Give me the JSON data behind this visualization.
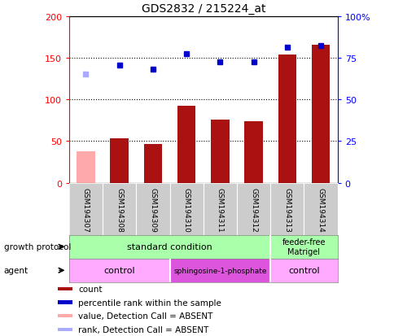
{
  "title": "GDS2832 / 215224_at",
  "samples": [
    "GSM194307",
    "GSM194308",
    "GSM194309",
    "GSM194310",
    "GSM194311",
    "GSM194312",
    "GSM194313",
    "GSM194314"
  ],
  "bar_values": [
    38,
    53,
    46,
    92,
    76,
    74,
    154,
    166
  ],
  "bar_absent": [
    true,
    false,
    false,
    false,
    false,
    false,
    false,
    false
  ],
  "rank_values": [
    65,
    70.5,
    68,
    77.5,
    72.5,
    72.5,
    81.5,
    82.5
  ],
  "rank_absent": [
    true,
    false,
    false,
    false,
    false,
    false,
    false,
    false
  ],
  "bar_color_present": "#aa1111",
  "bar_color_absent": "#ffaaaa",
  "rank_color_present": "#0000cc",
  "rank_color_absent": "#aaaaff",
  "ylim_left": [
    0,
    200
  ],
  "ylim_right": [
    0,
    100
  ],
  "yticks_left": [
    0,
    50,
    100,
    150,
    200
  ],
  "ytick_labels_left": [
    "0",
    "50",
    "100",
    "150",
    "200"
  ],
  "yticks_right": [
    0,
    25,
    50,
    75,
    100
  ],
  "ytick_labels_right": [
    "0",
    "25",
    "50",
    "75",
    "100%"
  ],
  "growth_protocol_labels": [
    "standard condition",
    "feeder-free\nMatrigel"
  ],
  "growth_protocol_colors": [
    "#aaffaa",
    "#aaffaa"
  ],
  "agent_labels": [
    "control",
    "sphingosine-1-phosphate",
    "control"
  ],
  "agent_colors_light": "#ffaaff",
  "agent_color_dark": "#dd66dd",
  "legend_items": [
    {
      "label": "count",
      "color": "#aa1111"
    },
    {
      "label": "percentile rank within the sample",
      "color": "#0000cc"
    },
    {
      "label": "value, Detection Call = ABSENT",
      "color": "#ffaaaa"
    },
    {
      "label": "rank, Detection Call = ABSENT",
      "color": "#aaaaff"
    }
  ],
  "background_color": "#ffffff",
  "x_label_area_color": "#cccccc"
}
